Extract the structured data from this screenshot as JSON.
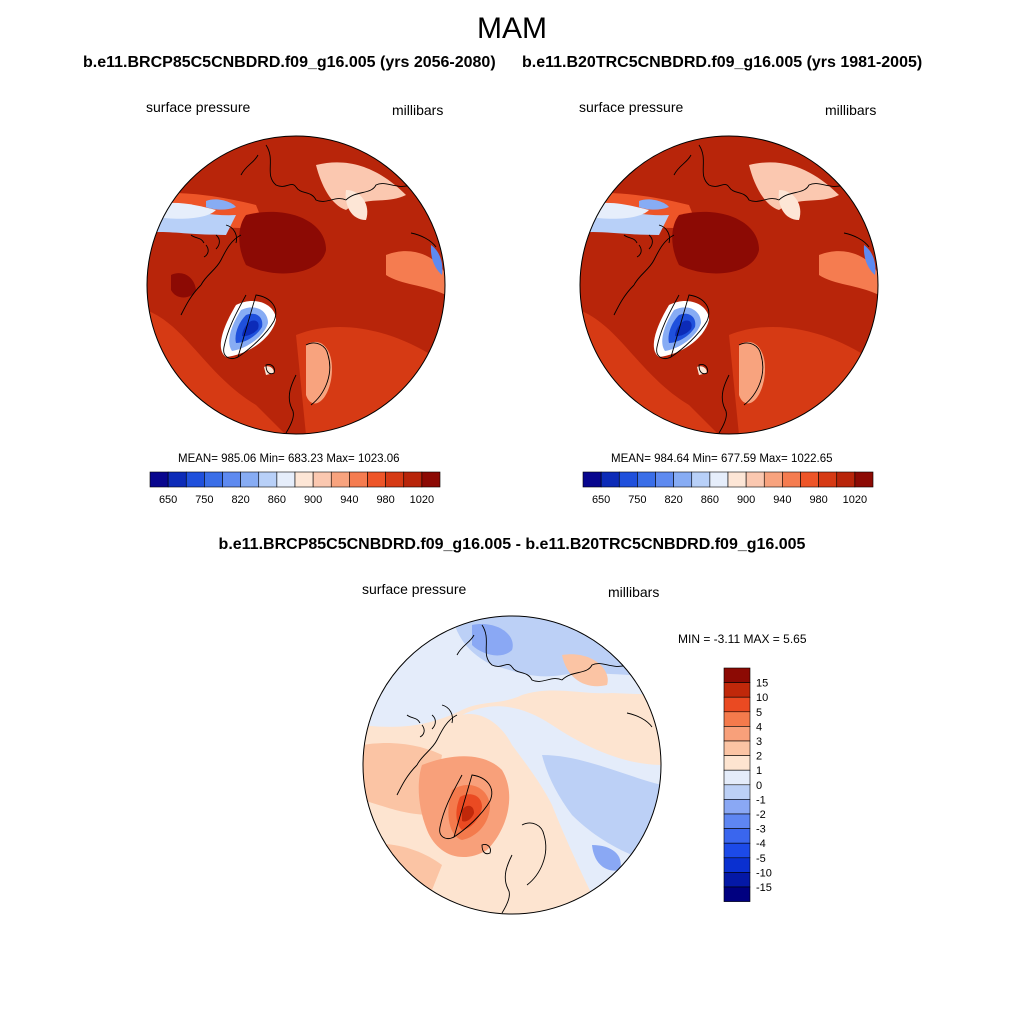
{
  "page": {
    "season": "MAM",
    "case_a_title": "b.e11.BRCP85C5CNBDRD.f09_g16.005 (yrs 2056-2080)",
    "case_b_title": "b.e11.B20TRC5CNBDRD.f09_g16.005 (yrs 1981-2005)",
    "diff_title": "b.e11.BRCP85C5CNBDRD.f09_g16.005 - b.e11.B20TRC5CNBDRD.f09_g16.005"
  },
  "panel_a": {
    "variable": "surface pressure",
    "units": "millibars",
    "stats": "MEAN= 985.06  Min= 683.23  Max= 1023.06",
    "colorbar_labels": [
      "650",
      "750",
      "820",
      "860",
      "900",
      "940",
      "980",
      "1020"
    ]
  },
  "panel_b": {
    "variable": "surface pressure",
    "units": "millibars",
    "stats": "MEAN= 984.64  Min= 677.59  Max= 1022.65",
    "colorbar_labels": [
      "650",
      "750",
      "820",
      "860",
      "900",
      "940",
      "980",
      "1020"
    ]
  },
  "panel_diff": {
    "variable": "surface pressure",
    "units": "millibars",
    "minmax": "MIN =  -3.11 MAX =   5.65",
    "colorbar_labels": [
      "15",
      "10",
      "5",
      "4",
      "3",
      "2",
      "1",
      "0",
      "-1",
      "-2",
      "-3",
      "-4",
      "-5",
      "-10",
      "-15"
    ]
  },
  "colors": {
    "abs_scale": [
      "#08068e",
      "#0c2bb8",
      "#1f50dc",
      "#3a6ee8",
      "#5e8af0",
      "#87acf4",
      "#b8d0f8",
      "#e6eefb",
      "#fde6d6",
      "#fbc8b0",
      "#f8a37e",
      "#f57c50",
      "#ee5528",
      "#d63a14",
      "#b8250a",
      "#8c0a04"
    ],
    "diff_scale": [
      "#000080",
      "#0418a6",
      "#0a30d0",
      "#1c4ae8",
      "#3a66ee",
      "#5e86f2",
      "#8aa8f4",
      "#bcd0f6",
      "#e4ecfa",
      "#fde4d0",
      "#fbc4a4",
      "#f8a07a",
      "#f47a4c",
      "#ea4a22",
      "#c0280a",
      "#8c0a04"
    ]
  }
}
